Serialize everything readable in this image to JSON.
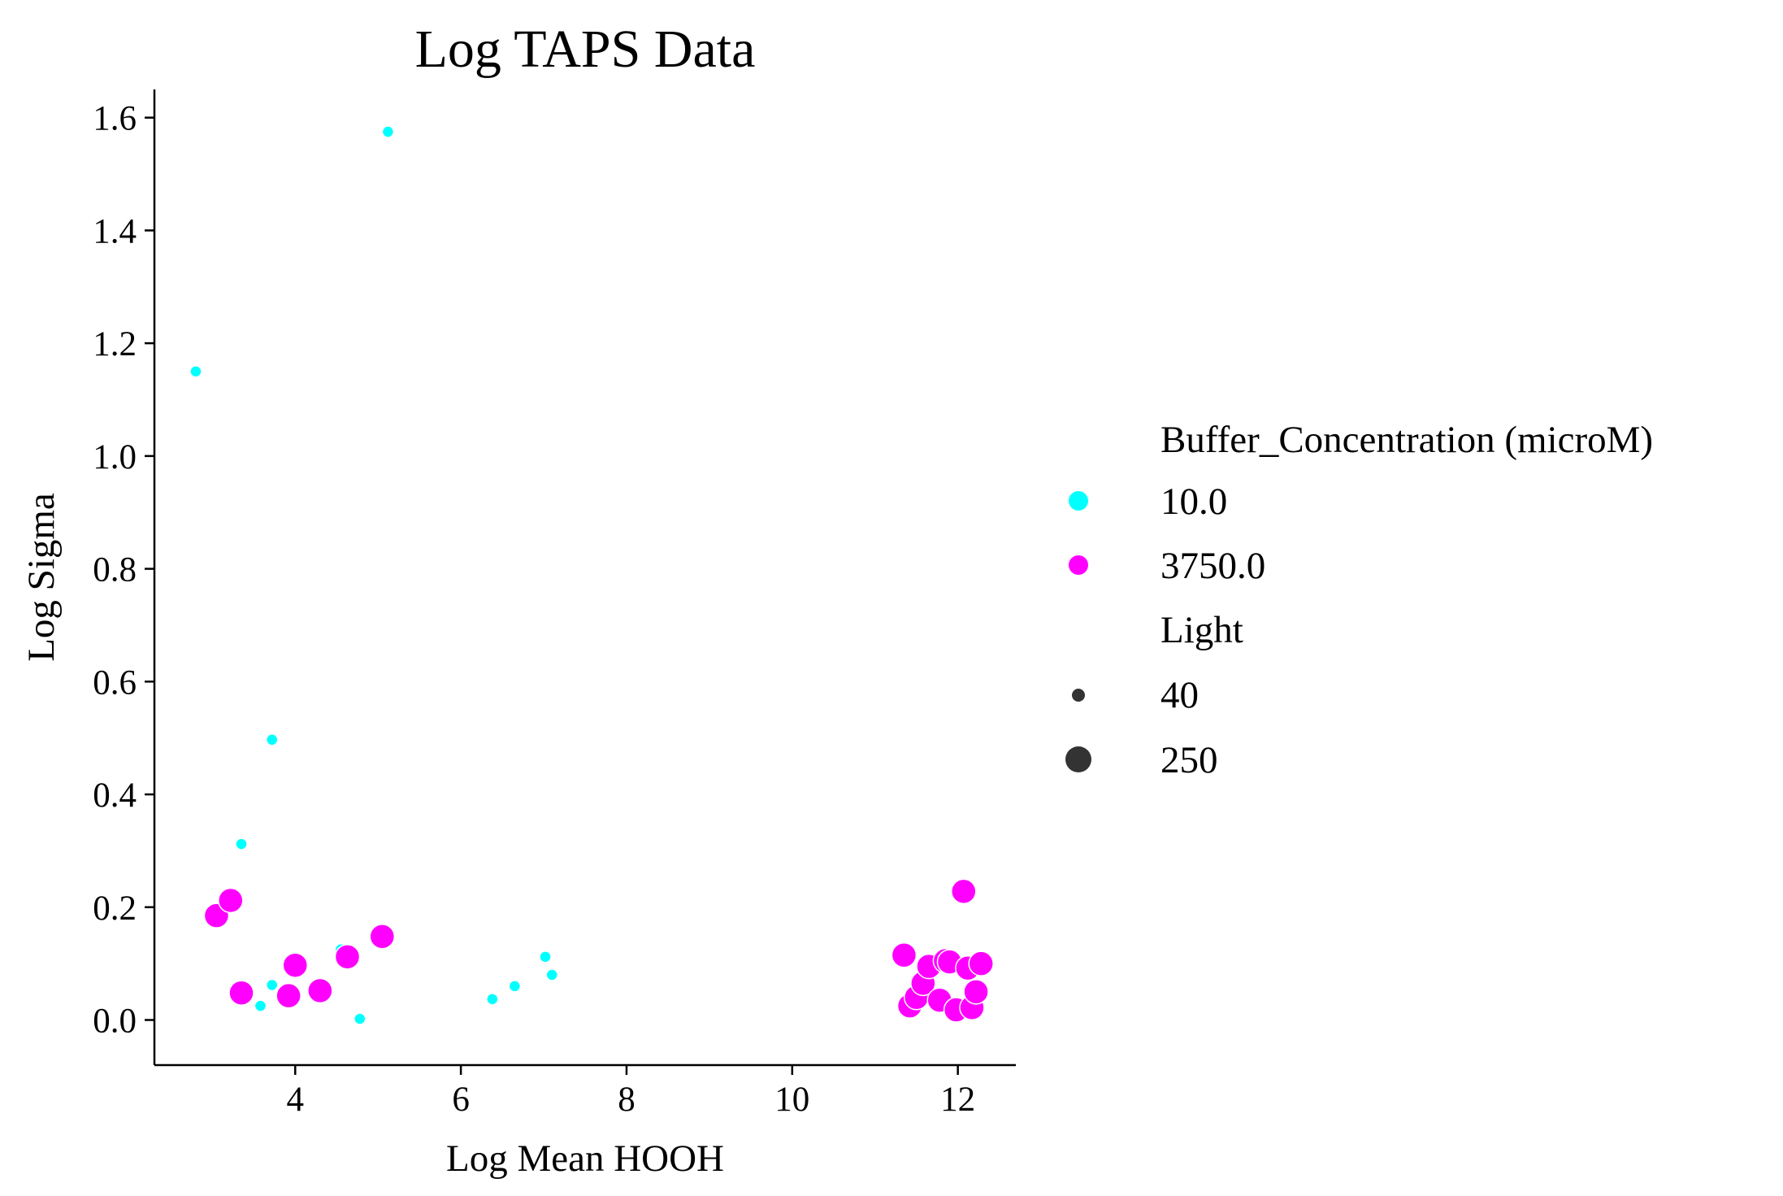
{
  "chart_data": {
    "type": "scatter",
    "title": "Log TAPS Data",
    "xlabel": "Log Mean HOOH",
    "ylabel": "Log Sigma",
    "xlim": [
      2.3,
      12.7
    ],
    "ylim": [
      -0.08,
      1.65
    ],
    "x_ticks": [
      4,
      6,
      8,
      10,
      12
    ],
    "y_ticks": [
      0.0,
      0.2,
      0.4,
      0.6,
      0.8,
      1.0,
      1.2,
      1.4,
      1.6
    ],
    "x_tick_labels": [
      "4",
      "6",
      "8",
      "10",
      "12"
    ],
    "y_tick_labels": [
      "0.0",
      "0.2",
      "0.4",
      "0.6",
      "0.8",
      "1.0",
      "1.2",
      "1.4",
      "1.6"
    ],
    "grid": false,
    "legend_position": "right, outside plot",
    "hue_title": "Buffer_Concentration (microM)",
    "size_title": "Light",
    "hue_levels": [
      {
        "label": "10.0",
        "color": "#00ffff"
      },
      {
        "label": "3750.0",
        "color": "#ff00ff"
      }
    ],
    "size_levels": [
      {
        "label": "40",
        "value": 40
      },
      {
        "label": "250",
        "value": 250
      }
    ],
    "series": [
      {
        "name": "10.0",
        "color": "#00ffff",
        "points": [
          {
            "x": 2.8,
            "y": 1.15,
            "light": 40
          },
          {
            "x": 5.12,
            "y": 1.575,
            "light": 40
          },
          {
            "x": 3.72,
            "y": 0.497,
            "light": 40
          },
          {
            "x": 3.35,
            "y": 0.312,
            "light": 40
          },
          {
            "x": 3.22,
            "y": 0.205,
            "light": 40
          },
          {
            "x": 3.72,
            "y": 0.062,
            "light": 40
          },
          {
            "x": 3.58,
            "y": 0.025,
            "light": 40
          },
          {
            "x": 4.78,
            "y": 0.002,
            "light": 40
          },
          {
            "x": 4.55,
            "y": 0.125,
            "light": 40
          },
          {
            "x": 6.38,
            "y": 0.037,
            "light": 40
          },
          {
            "x": 6.65,
            "y": 0.06,
            "light": 40
          },
          {
            "x": 7.02,
            "y": 0.112,
            "light": 40
          },
          {
            "x": 7.1,
            "y": 0.08,
            "light": 40
          }
        ]
      },
      {
        "name": "3750.0",
        "color": "#ff00ff",
        "points": [
          {
            "x": 3.05,
            "y": 0.185,
            "light": 250
          },
          {
            "x": 3.22,
            "y": 0.212,
            "light": 250
          },
          {
            "x": 3.35,
            "y": 0.048,
            "light": 250
          },
          {
            "x": 3.92,
            "y": 0.043,
            "light": 250
          },
          {
            "x": 4.0,
            "y": 0.097,
            "light": 250
          },
          {
            "x": 4.3,
            "y": 0.052,
            "light": 250
          },
          {
            "x": 4.63,
            "y": 0.112,
            "light": 250
          },
          {
            "x": 5.05,
            "y": 0.148,
            "light": 250
          },
          {
            "x": 11.35,
            "y": 0.115,
            "light": 250
          },
          {
            "x": 11.42,
            "y": 0.025,
            "light": 250
          },
          {
            "x": 11.5,
            "y": 0.04,
            "light": 250
          },
          {
            "x": 11.58,
            "y": 0.065,
            "light": 250
          },
          {
            "x": 11.65,
            "y": 0.095,
            "light": 250
          },
          {
            "x": 11.78,
            "y": 0.035,
            "light": 250
          },
          {
            "x": 11.85,
            "y": 0.105,
            "light": 250
          },
          {
            "x": 11.9,
            "y": 0.103,
            "light": 250
          },
          {
            "x": 11.98,
            "y": 0.018,
            "light": 250
          },
          {
            "x": 12.07,
            "y": 0.228,
            "light": 250
          },
          {
            "x": 12.12,
            "y": 0.092,
            "light": 250
          },
          {
            "x": 12.17,
            "y": 0.022,
            "light": 250
          },
          {
            "x": 12.22,
            "y": 0.05,
            "light": 250
          },
          {
            "x": 12.28,
            "y": 0.1,
            "light": 250
          }
        ]
      }
    ]
  }
}
